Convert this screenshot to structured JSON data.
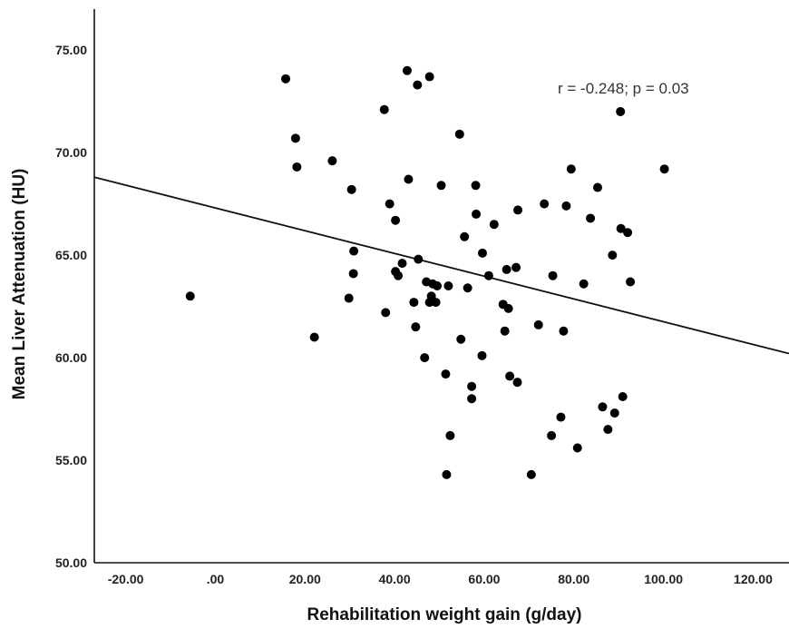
{
  "chart_data": {
    "type": "scatter",
    "xlabel": "Rehabilitation weight gain (g/day)",
    "ylabel": "Mean Liver Attenuation (HU)",
    "annotation": "r = -0.248; p = 0.03",
    "xlim": [
      -27,
      128
    ],
    "ylim": [
      50,
      77
    ],
    "x_ticks": [
      "-20.00",
      ".00",
      "20.00",
      "40.00",
      "60.00",
      "80.00",
      "100.00",
      "120.00"
    ],
    "x_tick_values": [
      -20,
      0,
      20,
      40,
      60,
      80,
      100,
      120
    ],
    "y_ticks": [
      "50.00",
      "55.00",
      "60.00",
      "65.00",
      "70.00",
      "75.00"
    ],
    "y_tick_values": [
      50,
      55,
      60,
      65,
      70,
      75
    ],
    "grid": false,
    "fit_line": {
      "x1": -27,
      "y1": 68.8,
      "x2": 128,
      "y2": 60.2
    },
    "points": [
      {
        "x": -5.6,
        "y": 63.0
      },
      {
        "x": 15.7,
        "y": 73.6
      },
      {
        "x": 17.9,
        "y": 70.7
      },
      {
        "x": 18.2,
        "y": 69.3
      },
      {
        "x": 22.1,
        "y": 61.0
      },
      {
        "x": 26.1,
        "y": 69.6
      },
      {
        "x": 29.8,
        "y": 62.9
      },
      {
        "x": 30.4,
        "y": 68.2
      },
      {
        "x": 30.9,
        "y": 65.2
      },
      {
        "x": 30.8,
        "y": 64.1
      },
      {
        "x": 37.7,
        "y": 72.1
      },
      {
        "x": 38.0,
        "y": 62.2
      },
      {
        "x": 38.9,
        "y": 67.5
      },
      {
        "x": 40.2,
        "y": 66.7
      },
      {
        "x": 40.2,
        "y": 64.2
      },
      {
        "x": 40.8,
        "y": 64.0
      },
      {
        "x": 41.7,
        "y": 64.6
      },
      {
        "x": 42.8,
        "y": 74.0
      },
      {
        "x": 43.1,
        "y": 68.7
      },
      {
        "x": 44.3,
        "y": 62.7
      },
      {
        "x": 44.7,
        "y": 61.5
      },
      {
        "x": 45.1,
        "y": 73.3
      },
      {
        "x": 45.3,
        "y": 64.8
      },
      {
        "x": 46.7,
        "y": 60.0
      },
      {
        "x": 47.1,
        "y": 63.7
      },
      {
        "x": 47.8,
        "y": 73.7
      },
      {
        "x": 47.8,
        "y": 62.7
      },
      {
        "x": 48.2,
        "y": 63.0
      },
      {
        "x": 48.5,
        "y": 63.6
      },
      {
        "x": 49.2,
        "y": 62.7
      },
      {
        "x": 49.5,
        "y": 63.5
      },
      {
        "x": 50.4,
        "y": 68.4
      },
      {
        "x": 51.4,
        "y": 59.2
      },
      {
        "x": 51.6,
        "y": 54.3
      },
      {
        "x": 52.0,
        "y": 63.5
      },
      {
        "x": 52.4,
        "y": 56.2
      },
      {
        "x": 54.5,
        "y": 70.9
      },
      {
        "x": 54.8,
        "y": 60.9
      },
      {
        "x": 55.6,
        "y": 65.9
      },
      {
        "x": 56.3,
        "y": 63.4
      },
      {
        "x": 57.2,
        "y": 58.0
      },
      {
        "x": 57.2,
        "y": 58.6
      },
      {
        "x": 58.1,
        "y": 68.4
      },
      {
        "x": 58.2,
        "y": 67.0
      },
      {
        "x": 59.5,
        "y": 60.1
      },
      {
        "x": 59.6,
        "y": 65.1
      },
      {
        "x": 61.0,
        "y": 64.0
      },
      {
        "x": 62.2,
        "y": 66.5
      },
      {
        "x": 64.2,
        "y": 62.6
      },
      {
        "x": 64.6,
        "y": 61.3
      },
      {
        "x": 65.0,
        "y": 64.3
      },
      {
        "x": 65.4,
        "y": 62.4
      },
      {
        "x": 65.7,
        "y": 59.1
      },
      {
        "x": 67.1,
        "y": 64.4
      },
      {
        "x": 67.4,
        "y": 58.8
      },
      {
        "x": 67.5,
        "y": 67.2
      },
      {
        "x": 70.5,
        "y": 54.3
      },
      {
        "x": 72.1,
        "y": 61.6
      },
      {
        "x": 73.4,
        "y": 67.5
      },
      {
        "x": 75.0,
        "y": 56.2
      },
      {
        "x": 75.3,
        "y": 64.0
      },
      {
        "x": 77.1,
        "y": 57.1
      },
      {
        "x": 77.7,
        "y": 61.3
      },
      {
        "x": 78.3,
        "y": 67.4
      },
      {
        "x": 79.4,
        "y": 69.2
      },
      {
        "x": 80.8,
        "y": 55.6
      },
      {
        "x": 82.2,
        "y": 63.6
      },
      {
        "x": 83.7,
        "y": 66.8
      },
      {
        "x": 85.3,
        "y": 68.3
      },
      {
        "x": 86.4,
        "y": 57.6
      },
      {
        "x": 87.6,
        "y": 56.5
      },
      {
        "x": 88.6,
        "y": 65.0
      },
      {
        "x": 89.1,
        "y": 57.3
      },
      {
        "x": 90.4,
        "y": 72.0
      },
      {
        "x": 90.5,
        "y": 66.3
      },
      {
        "x": 90.9,
        "y": 58.1
      },
      {
        "x": 92.0,
        "y": 66.1
      },
      {
        "x": 92.6,
        "y": 63.7
      },
      {
        "x": 100.2,
        "y": 69.2
      }
    ]
  }
}
